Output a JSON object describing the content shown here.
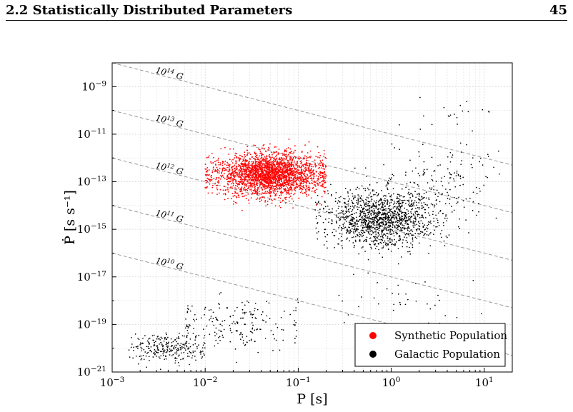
{
  "header": {
    "section_title": "2.2 Statistically Distributed Parameters",
    "page_number": "45"
  },
  "chart_data": {
    "type": "scatter",
    "title": "",
    "xlabel": "P [s]",
    "ylabel": "Ṗ [s s⁻¹]",
    "x_scale": "log",
    "y_scale": "log",
    "xlim": [
      0.001,
      20
    ],
    "ylim": [
      1e-21,
      1e-08
    ],
    "grid": true,
    "x_ticks": [
      {
        "value": 0.001,
        "base": "10",
        "exp": "−3"
      },
      {
        "value": 0.01,
        "base": "10",
        "exp": "−2"
      },
      {
        "value": 0.1,
        "base": "10",
        "exp": "−1"
      },
      {
        "value": 1,
        "base": "10",
        "exp": "0"
      },
      {
        "value": 10,
        "base": "10",
        "exp": "1"
      }
    ],
    "y_ticks": [
      {
        "value": 1e-21,
        "base": "10",
        "exp": "−21"
      },
      {
        "value": 1e-19,
        "base": "10",
        "exp": "−19"
      },
      {
        "value": 1e-17,
        "base": "10",
        "exp": "−17"
      },
      {
        "value": 1e-15,
        "base": "10",
        "exp": "−15"
      },
      {
        "value": 1e-13,
        "base": "10",
        "exp": "−13"
      },
      {
        "value": 1e-11,
        "base": "10",
        "exp": "−11"
      },
      {
        "value": 1e-09,
        "base": "10",
        "exp": "−9"
      }
    ],
    "b_field_lines": [
      {
        "label_base": "10",
        "label_exp": "14",
        "unit": "G",
        "pdot_at_1e-3s": 1e-08
      },
      {
        "label_base": "10",
        "label_exp": "13",
        "unit": "G",
        "pdot_at_1e-3s": 1e-10
      },
      {
        "label_base": "10",
        "label_exp": "12",
        "unit": "G",
        "pdot_at_1e-3s": 1e-12
      },
      {
        "label_base": "10",
        "label_exp": "11",
        "unit": "G",
        "pdot_at_1e-3s": 1e-14
      },
      {
        "label_base": "10",
        "label_exp": "10",
        "unit": "G",
        "pdot_at_1e-3s": 1e-16
      }
    ],
    "legend_position": "bottom-right",
    "series": [
      {
        "name": "Synthetic Population",
        "color": "#ff0000",
        "clusters": [
          {
            "center_P": 0.05,
            "center_Pdot": 2e-13,
            "spread_log_P": 0.28,
            "spread_log_Pdot": 0.45,
            "count": 2600,
            "P_range": [
              0.01,
              0.2
            ]
          }
        ]
      },
      {
        "name": "Galactic Population",
        "color": "#000000",
        "clusters": [
          {
            "center_P": 0.8,
            "center_Pdot": 3e-15,
            "spread_log_P": 0.3,
            "spread_log_Pdot": 0.6,
            "count": 1400,
            "P_range": [
              0.15,
              10
            ]
          },
          {
            "center_P": 3,
            "center_Pdot": 1e-13,
            "spread_log_P": 0.35,
            "spread_log_Pdot": 0.9,
            "count": 160,
            "P_range": [
              0.3,
              15
            ]
          },
          {
            "center_P": 0.004,
            "center_Pdot": 1e-20,
            "spread_log_P": 0.2,
            "spread_log_Pdot": 0.3,
            "count": 260,
            "P_range": [
              0.0015,
              0.01
            ]
          },
          {
            "center_P": 0.02,
            "center_Pdot": 1e-19,
            "spread_log_P": 0.4,
            "spread_log_Pdot": 0.55,
            "count": 200,
            "P_range": [
              0.006,
              0.1
            ]
          },
          {
            "center_P": 1.5,
            "center_Pdot": 1e-18,
            "spread_log_P": 0.45,
            "spread_log_Pdot": 0.6,
            "count": 40,
            "P_range": [
              0.1,
              10
            ]
          },
          {
            "center_P": 6,
            "center_Pdot": 1e-10,
            "spread_log_P": 0.25,
            "spread_log_Pdot": 0.5,
            "count": 18,
            "P_range": [
              2,
              12
            ]
          }
        ]
      }
    ]
  }
}
